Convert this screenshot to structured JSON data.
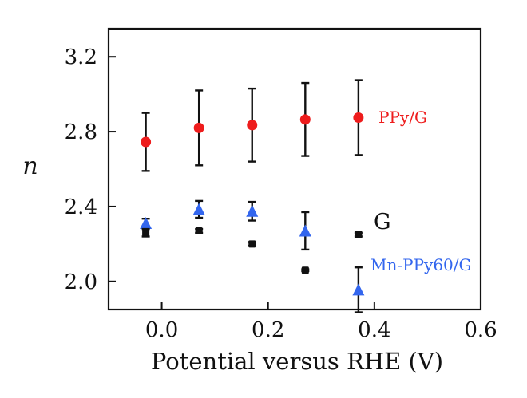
{
  "chart_data": {
    "type": "scatter",
    "title": "",
    "xlabel": "Potential versus RHE (V)",
    "ylabel": "n",
    "xlim": [
      -0.1,
      0.6
    ],
    "ylim": [
      1.85,
      3.35
    ],
    "xticks": [
      0.0,
      0.2,
      0.4,
      0.6
    ],
    "xtick_labels": [
      "0.0",
      "0.2",
      "0.4",
      "0.6"
    ],
    "yticks": [
      2.0,
      2.4,
      2.8,
      3.2
    ],
    "ytick_labels": [
      "2.0",
      "2.4",
      "2.8",
      "3.2"
    ],
    "grid": false,
    "series": [
      {
        "name": "PPy/G",
        "marker": "circle",
        "color": "#ee1c1c",
        "x": [
          -0.03,
          0.07,
          0.17,
          0.27,
          0.37
        ],
        "y": [
          2.745,
          2.82,
          2.835,
          2.865,
          2.875
        ],
        "err": [
          0.155,
          0.2,
          0.195,
          0.195,
          0.2
        ]
      },
      {
        "name": "G",
        "marker": "square",
        "color": "#111111",
        "x": [
          -0.03,
          0.07,
          0.17,
          0.27,
          0.37
        ],
        "y": [
          2.26,
          2.27,
          2.2,
          2.06,
          2.25
        ],
        "err": [
          0.02,
          0.01,
          0.01,
          0.005,
          0.01
        ]
      },
      {
        "name": "Mn-PPy60/G",
        "marker": "triangle",
        "color": "#3366ee",
        "x": [
          -0.03,
          0.07,
          0.17,
          0.27,
          0.37
        ],
        "y": [
          2.31,
          2.385,
          2.375,
          2.27,
          1.955
        ],
        "err": [
          0.025,
          0.045,
          0.05,
          0.1,
          0.12
        ]
      }
    ]
  }
}
